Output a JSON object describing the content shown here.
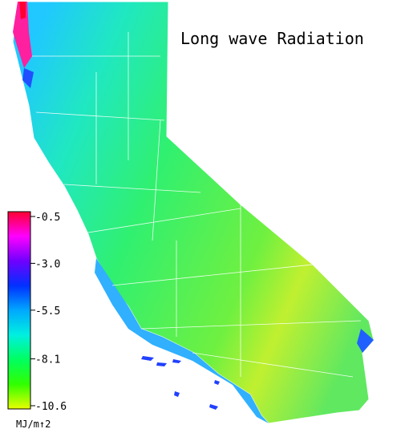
{
  "title": "Long wave Radiation",
  "colorbar": {
    "lim": [
      -10.6,
      -0.5
    ],
    "ticks": [
      -0.5,
      {
        "value": -3.0,
        "label": "-3.0"
      },
      -5.5,
      -8.1,
      -10.6
    ],
    "unit": "MJ/m↑2",
    "colors": [
      "#ff0030",
      "#ff00ff",
      "#7000ff",
      "#0030ff",
      "#00a8ff",
      "#00f0e0",
      "#00ff60",
      "#30ff00",
      "#e8ff00"
    ]
  }
}
